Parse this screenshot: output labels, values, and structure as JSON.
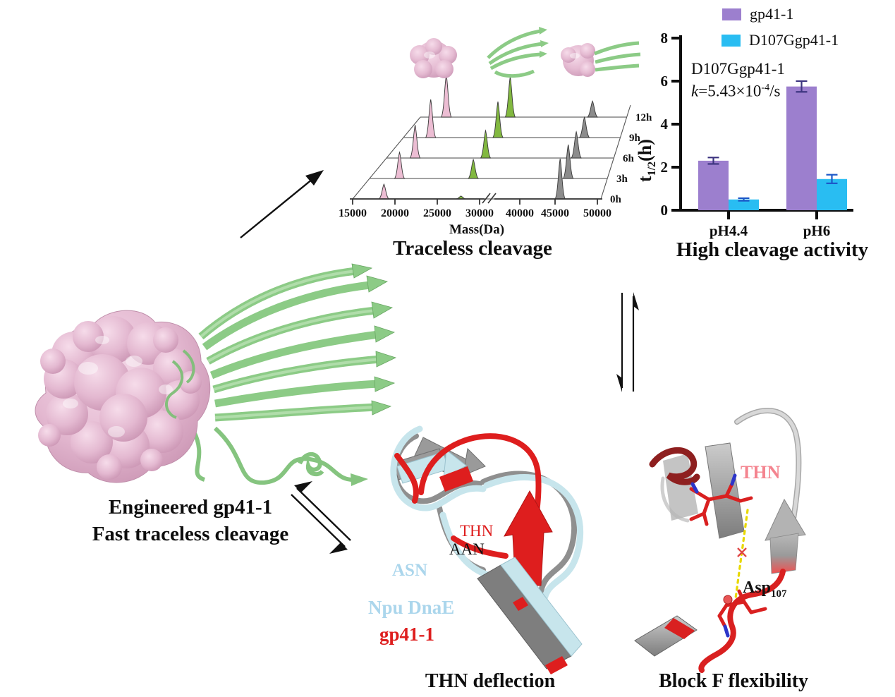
{
  "figure": {
    "captions": {
      "traceless": "Traceless cleavage",
      "high_cleavage": "High cleavage activity",
      "engineered_line1": "Engineered gp41-1",
      "engineered_line2": "Fast traceless cleavage",
      "thn_deflection": "THN deflection",
      "blockf": "Block F flexibility"
    },
    "labels": {
      "thn_red": "THN",
      "aan": "AAN",
      "asn": "ASN",
      "npu_dnae": "Npu DnaE",
      "gp41": "gp41-1",
      "thn_pink": "THN",
      "asp_base": "Asp",
      "asp_sub": "107"
    },
    "colors": {
      "red": "#de1e1e",
      "light_blue_label": "#abd6ec",
      "pink_label": "#f4848f",
      "purple": "#9c7fce",
      "cyan": "#29bdf2"
    }
  },
  "chart_data": [
    {
      "type": "line",
      "subtype": "waterfall-mass-spectra",
      "title": "Traceless cleavage",
      "xlabel": "Mass(Da)",
      "x_ticks": [
        15000,
        20000,
        25000,
        30000,
        40000,
        45000,
        50000
      ],
      "x_tick_labels": [
        "15000",
        "20000",
        "25000",
        "30000",
        "40000",
        "45000",
        "50000"
      ],
      "axis_break_between": [
        30000,
        40000
      ],
      "colors": [
        "#ecbdd3",
        "#82b840",
        "#8c8c8c"
      ],
      "traces": [
        {
          "time": "0h",
          "peaks": [
            {
              "mass": 18700,
              "height": 0.35,
              "series": 0
            },
            {
              "mass": 27800,
              "height": 0.07,
              "series": 1
            },
            {
              "mass": 45200,
              "height": 0.95,
              "series": 2
            }
          ]
        },
        {
          "time": "3h",
          "peaks": [
            {
              "mass": 18700,
              "height": 0.62,
              "series": 0
            },
            {
              "mass": 27800,
              "height": 0.45,
              "series": 1
            },
            {
              "mass": 45200,
              "height": 0.8,
              "series": 2
            }
          ]
        },
        {
          "time": "6h",
          "peaks": [
            {
              "mass": 18700,
              "height": 0.78,
              "series": 0
            },
            {
              "mass": 27800,
              "height": 0.65,
              "series": 1
            },
            {
              "mass": 45200,
              "height": 0.62,
              "series": 2
            }
          ]
        },
        {
          "time": "9h",
          "peaks": [
            {
              "mass": 18700,
              "height": 0.9,
              "series": 0
            },
            {
              "mass": 27800,
              "height": 0.85,
              "series": 1
            },
            {
              "mass": 45200,
              "height": 0.48,
              "series": 2
            }
          ]
        },
        {
          "time": "12h",
          "peaks": [
            {
              "mass": 18700,
              "height": 1.0,
              "series": 0
            },
            {
              "mass": 27800,
              "height": 0.95,
              "series": 1
            },
            {
              "mass": 45200,
              "height": 0.38,
              "series": 2
            }
          ]
        }
      ]
    },
    {
      "type": "bar",
      "title": "High cleavage activity",
      "ylabel": "t1/2(h)",
      "ylabel_parts": {
        "base": "t",
        "sub": "1/2",
        "rest": "(h)"
      },
      "ylim": [
        0,
        8
      ],
      "y_ticks": [
        0,
        2,
        4,
        6,
        8
      ],
      "categories": [
        "pH4.4",
        "pH6"
      ],
      "series": [
        {
          "name": "gp41-1",
          "color": "#9c7fce",
          "values": [
            2.3,
            5.75
          ],
          "errors": [
            0.15,
            0.25
          ],
          "error_color": "#3d3580"
        },
        {
          "name": "D107Ggp41-1",
          "color": "#29bdf2",
          "values": [
            0.5,
            1.45
          ],
          "errors": [
            0.06,
            0.2
          ],
          "error_color": "#1c58c8"
        }
      ],
      "annotation": {
        "line1": "D107Ggp41-1",
        "k": "k",
        "eq": "=5.43×10",
        "exp": "-4",
        "unit": "/s"
      },
      "legend_position": "top-right",
      "grid": false
    }
  ]
}
